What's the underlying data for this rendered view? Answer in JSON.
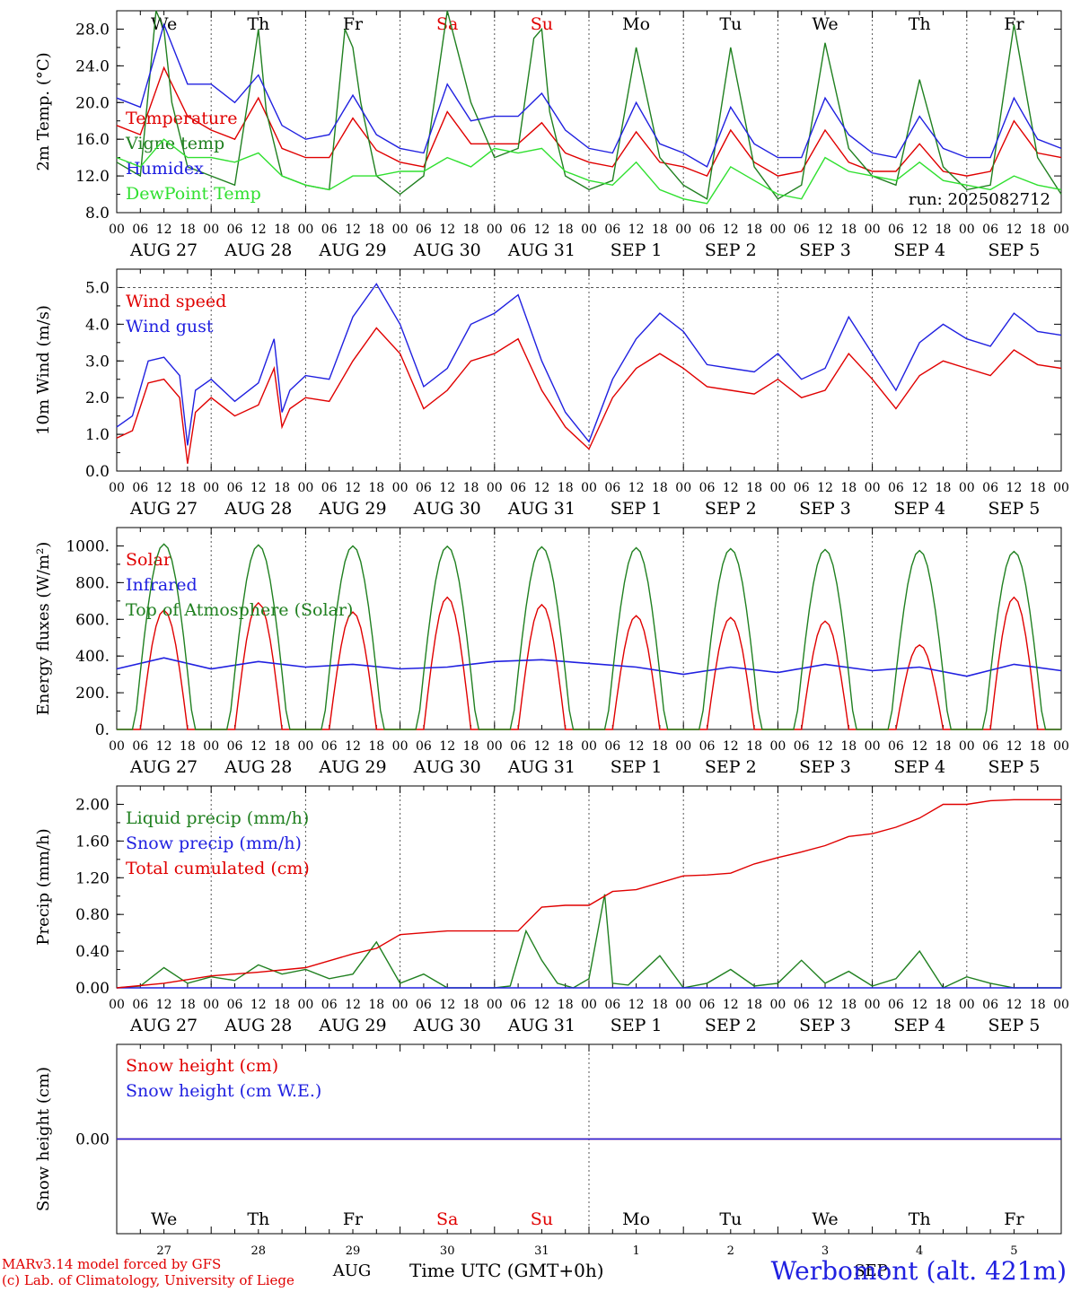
{
  "day_letters": [
    "We",
    "Th",
    "Fr",
    "Sa",
    "Su",
    "Mo",
    "Tu",
    "We",
    "Th",
    "Fr"
  ],
  "weekend_color": "#e00000",
  "date_labels": [
    "AUG 27",
    "AUG 28",
    "AUG 29",
    "AUG 30",
    "AUG 31",
    "SEP  1",
    "SEP  2",
    "SEP  3",
    "SEP  4",
    "SEP  5"
  ],
  "hour_ticks": [
    "00",
    "06",
    "12",
    "18"
  ],
  "final_hour": "00",
  "bottom_day_numbers": [
    "27",
    "28",
    "29",
    "30",
    "31",
    "1",
    "2",
    "3",
    "4",
    "5"
  ],
  "bottom_months": [
    "AUG",
    "SEP"
  ],
  "xlabel": "Time UTC (GMT+0h)",
  "credit_lines": [
    "MARv3.14 model forced by GFS",
    "(c) Lab. of Climatology, University of Liege"
  ],
  "station": "Werbomont (alt. 421m)",
  "run_label": "run: 2025082712",
  "chart_data": [
    {
      "type": "line",
      "ylabel": "2m Temp. (°C)",
      "ylim": [
        8,
        30
      ],
      "yticks": [
        "8.0",
        "12.0",
        "16.0",
        "20.0",
        "24.0",
        "28.0"
      ],
      "x_unit": "hours since 2025-08-27 00 UTC",
      "series": [
        {
          "name": "Temperature",
          "color": "#e00000",
          "x": [
            0,
            6,
            12,
            18,
            24,
            30,
            36,
            42,
            48,
            54,
            60,
            66,
            72,
            78,
            84,
            90,
            96,
            102,
            108,
            114,
            120,
            126,
            132,
            138,
            144,
            150,
            156,
            162,
            168,
            174,
            180,
            186,
            192,
            198,
            204,
            210,
            216,
            222,
            228,
            234,
            240
          ],
          "values": [
            17.5,
            16.5,
            23.8,
            18.5,
            17.0,
            16.0,
            20.5,
            15.0,
            14.0,
            14.0,
            18.3,
            14.8,
            13.5,
            13.0,
            19.0,
            15.5,
            15.5,
            15.5,
            17.8,
            14.5,
            13.5,
            13.0,
            16.8,
            13.5,
            13.0,
            12.0,
            17.0,
            13.5,
            12.0,
            12.5,
            17.0,
            13.5,
            12.5,
            12.5,
            15.5,
            12.5,
            12.0,
            12.5,
            18.0,
            14.5,
            14.0
          ]
        },
        {
          "name": "Vigne temp",
          "color": "#208020",
          "x": [
            0,
            6,
            10,
            12,
            14,
            18,
            24,
            30,
            34,
            36,
            38,
            42,
            48,
            54,
            58,
            60,
            62,
            66,
            72,
            78,
            84,
            90,
            96,
            102,
            106,
            108,
            110,
            114,
            120,
            126,
            132,
            138,
            144,
            150,
            156,
            162,
            168,
            174,
            180,
            186,
            192,
            198,
            204,
            210,
            216,
            222,
            228,
            234,
            240
          ],
          "values": [
            13.5,
            12.0,
            30.0,
            28.0,
            20.0,
            13.0,
            12.0,
            11.0,
            22.0,
            28.0,
            19.0,
            12.0,
            11.0,
            10.5,
            28.0,
            26.0,
            20.0,
            12.0,
            10.0,
            12.0,
            30.0,
            20.0,
            14.0,
            15.0,
            27.0,
            28.0,
            19.0,
            12.0,
            10.5,
            11.5,
            26.0,
            14.0,
            11.0,
            9.5,
            26.0,
            13.0,
            9.5,
            11.0,
            26.5,
            15.0,
            12.0,
            11.0,
            22.5,
            13.0,
            10.5,
            11.0,
            28.5,
            14.0,
            10.0
          ]
        },
        {
          "name": "Humidex",
          "color": "#2020e0",
          "x": [
            0,
            6,
            12,
            18,
            24,
            30,
            36,
            42,
            48,
            54,
            60,
            66,
            72,
            78,
            84,
            90,
            96,
            102,
            108,
            114,
            120,
            126,
            132,
            138,
            144,
            150,
            156,
            162,
            168,
            174,
            180,
            186,
            192,
            198,
            204,
            210,
            216,
            222,
            228,
            234,
            240
          ],
          "values": [
            20.5,
            19.5,
            28.5,
            22.0,
            22.0,
            20.0,
            23.0,
            17.5,
            16.0,
            16.5,
            20.8,
            16.5,
            15.0,
            14.5,
            22.0,
            18.0,
            18.5,
            18.5,
            21.0,
            17.0,
            15.0,
            14.5,
            20.0,
            15.5,
            14.5,
            13.0,
            19.5,
            15.5,
            14.0,
            14.0,
            20.5,
            16.5,
            14.5,
            14.0,
            18.5,
            15.0,
            14.0,
            14.0,
            20.5,
            16.0,
            15.0
          ]
        },
        {
          "name": "DewPoint Temp",
          "color": "#30e030",
          "x": [
            0,
            6,
            12,
            18,
            24,
            30,
            36,
            42,
            48,
            54,
            60,
            66,
            72,
            78,
            84,
            90,
            96,
            102,
            108,
            114,
            120,
            126,
            132,
            138,
            144,
            150,
            156,
            162,
            168,
            174,
            180,
            186,
            192,
            198,
            204,
            210,
            216,
            222,
            228,
            234,
            240
          ],
          "values": [
            14.0,
            13.0,
            16.0,
            14.0,
            14.0,
            13.5,
            14.5,
            12.0,
            11.0,
            10.5,
            12.0,
            12.0,
            12.5,
            12.5,
            14.0,
            13.0,
            15.0,
            14.5,
            15.0,
            12.5,
            11.5,
            11.0,
            13.5,
            10.5,
            9.5,
            9.0,
            13.0,
            11.5,
            10.0,
            9.5,
            14.0,
            12.5,
            12.0,
            11.5,
            13.5,
            11.5,
            11.0,
            10.5,
            12.0,
            11.0,
            10.5
          ]
        }
      ]
    },
    {
      "type": "line",
      "ylabel": "10m Wind (m/s)",
      "ylim": [
        0,
        5.5
      ],
      "yticks": [
        "0.0",
        "1.0",
        "2.0",
        "3.0",
        "4.0",
        "5.0"
      ],
      "reference_line": 5.0,
      "series": [
        {
          "name": "Wind speed",
          "color": "#e00000",
          "x": [
            0,
            4,
            8,
            12,
            16,
            18,
            20,
            24,
            30,
            36,
            40,
            42,
            44,
            48,
            54,
            60,
            66,
            72,
            78,
            84,
            90,
            96,
            102,
            108,
            114,
            120,
            126,
            132,
            138,
            144,
            150,
            156,
            162,
            168,
            174,
            180,
            186,
            192,
            198,
            204,
            210,
            216,
            222,
            228,
            234,
            240
          ],
          "values": [
            0.9,
            1.1,
            2.4,
            2.5,
            2.0,
            0.2,
            1.6,
            2.0,
            1.5,
            1.8,
            2.8,
            1.2,
            1.7,
            2.0,
            1.9,
            3.0,
            3.9,
            3.2,
            1.7,
            2.2,
            3.0,
            3.2,
            3.6,
            2.2,
            1.2,
            0.6,
            2.0,
            2.8,
            3.2,
            2.8,
            2.3,
            2.2,
            2.1,
            2.5,
            2.0,
            2.2,
            3.2,
            2.5,
            1.7,
            2.6,
            3.0,
            2.8,
            2.6,
            3.3,
            2.9,
            2.8
          ]
        },
        {
          "name": "Wind gust",
          "color": "#2020e0",
          "x": [
            0,
            4,
            8,
            12,
            16,
            18,
            20,
            24,
            30,
            36,
            40,
            42,
            44,
            48,
            54,
            60,
            66,
            72,
            78,
            84,
            90,
            96,
            102,
            108,
            114,
            120,
            126,
            132,
            138,
            144,
            150,
            156,
            162,
            168,
            174,
            180,
            186,
            192,
            198,
            204,
            210,
            216,
            222,
            228,
            234,
            240
          ],
          "values": [
            1.2,
            1.5,
            3.0,
            3.1,
            2.6,
            0.7,
            2.2,
            2.5,
            1.9,
            2.4,
            3.6,
            1.6,
            2.2,
            2.6,
            2.5,
            4.2,
            5.1,
            4.0,
            2.3,
            2.8,
            4.0,
            4.3,
            4.8,
            3.0,
            1.6,
            0.8,
            2.5,
            3.6,
            4.3,
            3.8,
            2.9,
            2.8,
            2.7,
            3.2,
            2.5,
            2.8,
            4.2,
            3.2,
            2.2,
            3.5,
            4.0,
            3.6,
            3.4,
            4.3,
            3.8,
            3.7
          ]
        }
      ]
    },
    {
      "type": "line",
      "ylabel": "Energy fluxes (W/m²)",
      "ylim": [
        0,
        1100
      ],
      "yticks": [
        "0.",
        "200.",
        "400.",
        "600.",
        "800.",
        "1000."
      ],
      "series": [
        {
          "name": "Solar",
          "color": "#e00000",
          "peaks": [
            650,
            690,
            640,
            720,
            680,
            620,
            610,
            590,
            460,
            720
          ],
          "values": []
        },
        {
          "name": "Infrared",
          "color": "#2020e0",
          "x": [
            0,
            12,
            24,
            36,
            48,
            60,
            72,
            84,
            96,
            108,
            120,
            132,
            144,
            156,
            168,
            180,
            192,
            204,
            216,
            228,
            240
          ],
          "values": [
            330,
            390,
            330,
            370,
            340,
            355,
            330,
            340,
            370,
            380,
            360,
            340,
            300,
            340,
            310,
            355,
            320,
            340,
            290,
            355,
            320
          ]
        },
        {
          "name": "Top of Atmosphere (Solar)",
          "color": "#208020",
          "peaks": [
            1010,
            1005,
            1000,
            998,
            995,
            990,
            985,
            980,
            975,
            970
          ],
          "values": []
        }
      ]
    },
    {
      "type": "line",
      "ylabel": "Precip (mm/h)",
      "ylim": [
        0,
        2.2
      ],
      "yticks": [
        "0.00",
        "0.40",
        "0.80",
        "1.20",
        "1.60",
        "2.00"
      ],
      "series": [
        {
          "name": "Liquid precip (mm/h)",
          "color": "#208020",
          "x": [
            0,
            6,
            12,
            18,
            24,
            30,
            36,
            42,
            48,
            54,
            60,
            66,
            72,
            78,
            84,
            90,
            96,
            100,
            104,
            108,
            112,
            116,
            120,
            124,
            126,
            130,
            138,
            144,
            150,
            156,
            162,
            168,
            174,
            180,
            186,
            192,
            198,
            204,
            210,
            216,
            222,
            228,
            234,
            240
          ],
          "values": [
            0,
            0.02,
            0.22,
            0.05,
            0.12,
            0.08,
            0.25,
            0.15,
            0.2,
            0.1,
            0.15,
            0.5,
            0.05,
            0.15,
            0,
            0,
            0,
            0.02,
            0.62,
            0.3,
            0.05,
            0,
            0.1,
            1.02,
            0.05,
            0.03,
            0.35,
            0,
            0.05,
            0.2,
            0.02,
            0.05,
            0.3,
            0.05,
            0.18,
            0.02,
            0.1,
            0.4,
            0,
            0.12,
            0.05,
            0,
            0,
            0
          ]
        },
        {
          "name": "Snow precip (mm/h)",
          "color": "#2020e0",
          "x": [
            0,
            240
          ],
          "values": [
            0,
            0
          ]
        },
        {
          "name": "Total cumulated (cm)",
          "color": "#e00000",
          "x": [
            0,
            12,
            24,
            36,
            48,
            60,
            66,
            72,
            84,
            96,
            102,
            108,
            114,
            120,
            126,
            132,
            144,
            150,
            156,
            162,
            168,
            174,
            180,
            186,
            192,
            198,
            204,
            210,
            216,
            222,
            228,
            234,
            240
          ],
          "values": [
            0,
            0.05,
            0.13,
            0.17,
            0.22,
            0.37,
            0.43,
            0.58,
            0.62,
            0.62,
            0.62,
            0.88,
            0.9,
            0.9,
            1.05,
            1.07,
            1.22,
            1.23,
            1.25,
            1.35,
            1.42,
            1.48,
            1.55,
            1.65,
            1.68,
            1.75,
            1.85,
            2.0,
            2.0,
            2.04,
            2.05,
            2.05,
            2.05
          ]
        }
      ]
    },
    {
      "type": "line",
      "ylabel": "Snow height (cm)",
      "ylim": [
        -1,
        1
      ],
      "yticks": [
        "0.00"
      ],
      "series": [
        {
          "name": "Snow height (cm)",
          "color": "#e00000",
          "x": [
            0,
            240
          ],
          "values": [
            0,
            0
          ]
        },
        {
          "name": "Snow height (cm W.E.)",
          "color": "#2020e0",
          "x": [
            0,
            240
          ],
          "values": [
            0,
            0
          ]
        }
      ]
    }
  ]
}
